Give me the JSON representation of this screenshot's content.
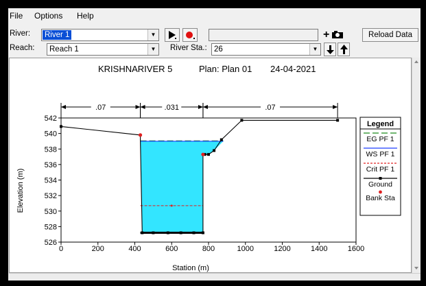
{
  "menu": {
    "file": "File",
    "options": "Options",
    "help": "Help"
  },
  "river": {
    "label": "River:",
    "value": "River 1"
  },
  "reach": {
    "label": "Reach:",
    "value": "Reach 1"
  },
  "river_sta": {
    "label": "River Sta.:",
    "value": "26"
  },
  "toolbar": {
    "reload_label": "Reload Data",
    "play_icon": "play-icon",
    "record_icon": "record-dot-icon",
    "camera_icon": "camera-icon",
    "down_icon": "arrow-down-icon",
    "up_icon": "arrow-up-icon"
  },
  "plot": {
    "title": "KRISHNARIVER 5",
    "plan": "Plan: Plan 01",
    "date": "24-04-2021"
  },
  "chart_data": {
    "type": "line",
    "xlabel": "Station (m)",
    "ylabel": "Elevation (m)",
    "xlim": [
      0,
      1600
    ],
    "ylim": [
      526,
      542
    ],
    "x_ticks": [
      0,
      200,
      400,
      600,
      800,
      1000,
      1200,
      1400,
      1600
    ],
    "y_ticks": [
      526,
      528,
      530,
      532,
      534,
      536,
      538,
      540,
      542
    ],
    "mannings_n": [
      {
        "label": ".07",
        "from": 0,
        "to": 430
      },
      {
        "label": ".031",
        "from": 430,
        "to": 770
      },
      {
        "label": ".07",
        "from": 770,
        "to": 1500
      }
    ],
    "ground": {
      "x": [
        0,
        430,
        430,
        440,
        500,
        580,
        650,
        720,
        770,
        770,
        780,
        800,
        830,
        870,
        980,
        1500
      ],
      "y": [
        540.9,
        539.8,
        539.1,
        527.2,
        527.2,
        527.2,
        527.2,
        527.2,
        527.2,
        537.3,
        537.3,
        537.3,
        537.8,
        539.2,
        541.7,
        541.7
      ]
    },
    "bank_sta": {
      "x": [
        430,
        770
      ],
      "y": [
        539.8,
        537.3
      ]
    },
    "ws_pf1": 539.0,
    "eg_pf1": 539.0,
    "crit_pf1": 530.7,
    "water_color": "#33e5ff",
    "legend": {
      "title": "Legend",
      "items": [
        {
          "name": "EG PF 1",
          "color": "#1a8a1a"
        },
        {
          "name": "WS PF 1",
          "color": "#1f3fff"
        },
        {
          "name": "Crit PF 1",
          "color": "#e02020"
        },
        {
          "name": "Ground",
          "color": "#000000"
        },
        {
          "name": "Bank Sta",
          "color": "#e02020"
        }
      ]
    }
  }
}
